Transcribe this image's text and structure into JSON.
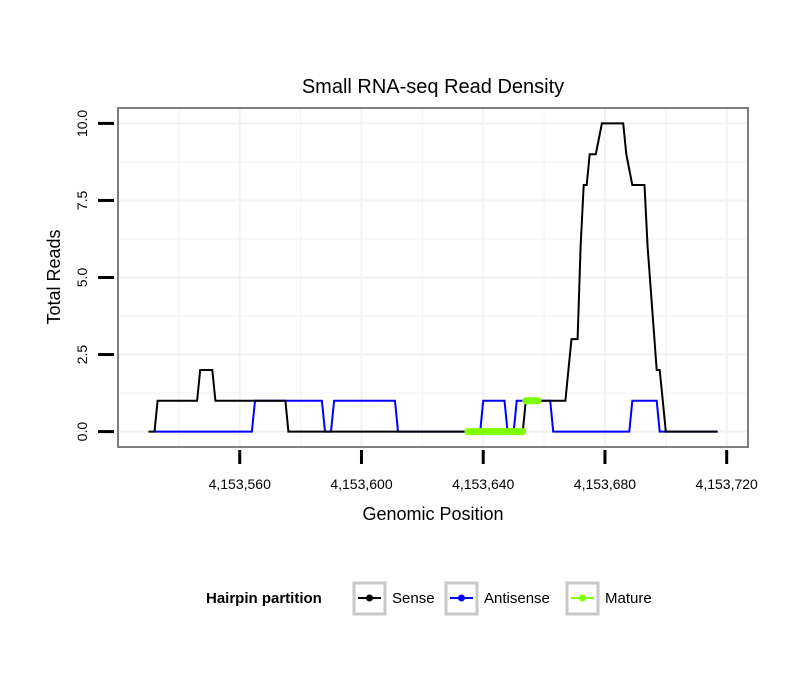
{
  "chart_data": {
    "type": "line",
    "title": "Small RNA-seq Read Density",
    "xlabel": "Genomic Position",
    "ylabel": "Total Reads",
    "xlim": [
      4153520,
      4153727
    ],
    "ylim": [
      -0.5,
      10.5
    ],
    "x_ticks": [
      4153560,
      4153600,
      4153640,
      4153680,
      4153720
    ],
    "x_tick_labels": [
      "4,153,560",
      "4,153,600",
      "4,153,640",
      "4,153,680",
      "4,153,720"
    ],
    "y_ticks": [
      0,
      2.5,
      5,
      7.5,
      10
    ],
    "y_tick_labels": [
      "0.0",
      "2.5",
      "5.0",
      "7.5",
      "10.0"
    ],
    "grid": true,
    "legend": {
      "title": "Hairpin partition",
      "position": "bottom",
      "entries": [
        "Sense",
        "Antisense",
        "Mature"
      ]
    },
    "series": [
      {
        "name": "Sense",
        "color": "#000000",
        "x": [
          4153530,
          4153532,
          4153533,
          4153546,
          4153547,
          4153551,
          4153552,
          4153566,
          4153567,
          4153575,
          4153576,
          4153653,
          4153654,
          4153667,
          4153668,
          4153669,
          4153671,
          4153672,
          4153673,
          4153674,
          4153675,
          4153676,
          4153677,
          4153679,
          4153680,
          4153681,
          4153686,
          4153687,
          4153689,
          4153690,
          4153693,
          4153694,
          4153697,
          4153698,
          4153699,
          4153700,
          4153717
        ],
        "y": [
          0,
          0,
          1,
          1,
          2,
          2,
          1,
          1,
          1,
          1,
          0,
          0,
          1,
          1,
          2,
          3,
          3,
          6,
          8,
          8,
          9,
          9,
          9,
          10,
          10,
          10,
          10,
          9,
          8,
          8,
          8,
          6,
          2,
          2,
          1,
          0,
          0
        ]
      },
      {
        "name": "Antisense",
        "color": "#0000ff",
        "x": [
          4153532,
          4153564,
          4153565,
          4153587,
          4153588,
          4153590,
          4153591,
          4153611,
          4153612,
          4153639,
          4153640,
          4153647,
          4153648,
          4153650,
          4153651,
          4153662,
          4153663,
          4153688,
          4153689,
          4153697,
          4153698,
          4153717
        ],
        "y": [
          0,
          0,
          1,
          1,
          0,
          0,
          1,
          1,
          0,
          0,
          1,
          1,
          0,
          0,
          1,
          1,
          0,
          0,
          1,
          1,
          0,
          0
        ]
      },
      {
        "name": "Mature",
        "color": "#7fff00",
        "segments": [
          {
            "x": [
              4153635,
              4153653
            ],
            "y": [
              0,
              0
            ]
          },
          {
            "x": [
              4153654,
              4153658
            ],
            "y": [
              1,
              1
            ]
          }
        ]
      }
    ]
  }
}
